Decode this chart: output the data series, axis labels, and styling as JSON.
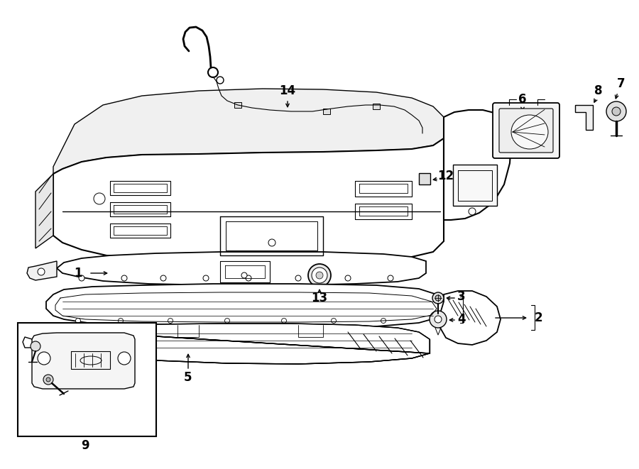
{
  "bg_color": "#ffffff",
  "line_color": "#000000",
  "lw": 1.0,
  "fig_width": 9.0,
  "fig_height": 6.61,
  "dpi": 100
}
